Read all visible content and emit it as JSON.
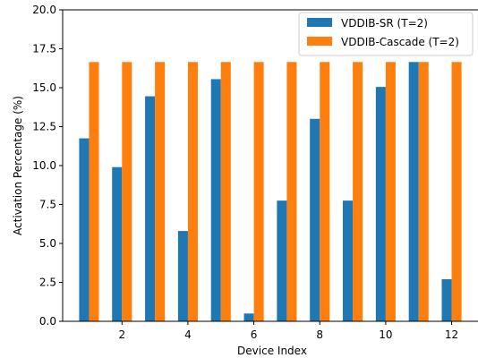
{
  "chart_data": {
    "type": "bar",
    "xlabel": "Device Index",
    "ylabel": "Activation Percentage (%)",
    "ylim": [
      0,
      20
    ],
    "xlim": [
      0.2,
      12.8
    ],
    "x": [
      1,
      2,
      3,
      4,
      5,
      6,
      7,
      8,
      9,
      10,
      11,
      12
    ],
    "x_ticks": [
      2,
      4,
      6,
      8,
      10,
      12
    ],
    "y_ticks": [
      "0.0",
      "2.5",
      "5.0",
      "7.5",
      "10.0",
      "12.5",
      "15.0",
      "17.5",
      "20.0"
    ],
    "grid": false,
    "legend_position": "upper right",
    "series": [
      {
        "name": "VDDIB-SR (T=2)",
        "color": "#1f77b4",
        "values": [
          11.75,
          9.9,
          14.45,
          5.8,
          15.55,
          0.5,
          7.75,
          13.0,
          7.75,
          15.05,
          16.65,
          2.7
        ]
      },
      {
        "name": "VDDIB-Cascade (T=2)",
        "color": "#ff7f0e",
        "values": [
          16.65,
          16.65,
          16.65,
          16.65,
          16.65,
          16.65,
          16.65,
          16.65,
          16.65,
          16.65,
          16.65,
          16.65
        ]
      }
    ]
  }
}
